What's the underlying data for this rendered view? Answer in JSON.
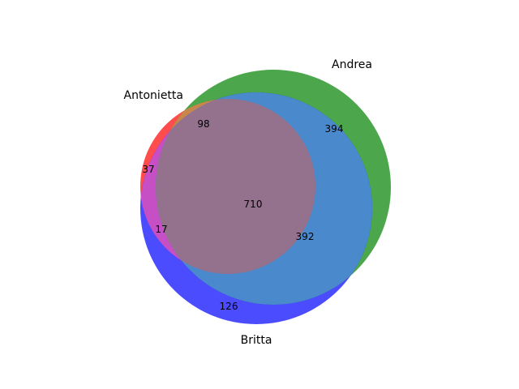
{
  "diagram": {
    "type": "venn3",
    "sets": [
      {
        "key": "antonietta",
        "name": "Antonietta",
        "color": "#ff0000"
      },
      {
        "key": "andrea",
        "name": "Andrea",
        "color": "#008000"
      },
      {
        "key": "britta",
        "name": "Britta",
        "color": "#0000ff"
      }
    ],
    "regions": [
      {
        "key": "antonietta_only",
        "sets": [
          "Antonietta"
        ],
        "value": "37"
      },
      {
        "key": "andrea_only",
        "sets": [
          "Andrea"
        ],
        "value": "394"
      },
      {
        "key": "britta_only",
        "sets": [
          "Britta"
        ],
        "value": "126"
      },
      {
        "key": "antonietta_andrea",
        "sets": [
          "Antonietta",
          "Andrea"
        ],
        "value": "98"
      },
      {
        "key": "antonietta_britta",
        "sets": [
          "Antonietta",
          "Britta"
        ],
        "value": "17"
      },
      {
        "key": "andrea_britta",
        "sets": [
          "Andrea",
          "Britta"
        ],
        "value": "392"
      },
      {
        "key": "all_three",
        "sets": [
          "Antonietta",
          "Andrea",
          "Britta"
        ],
        "value": "710"
      }
    ]
  }
}
